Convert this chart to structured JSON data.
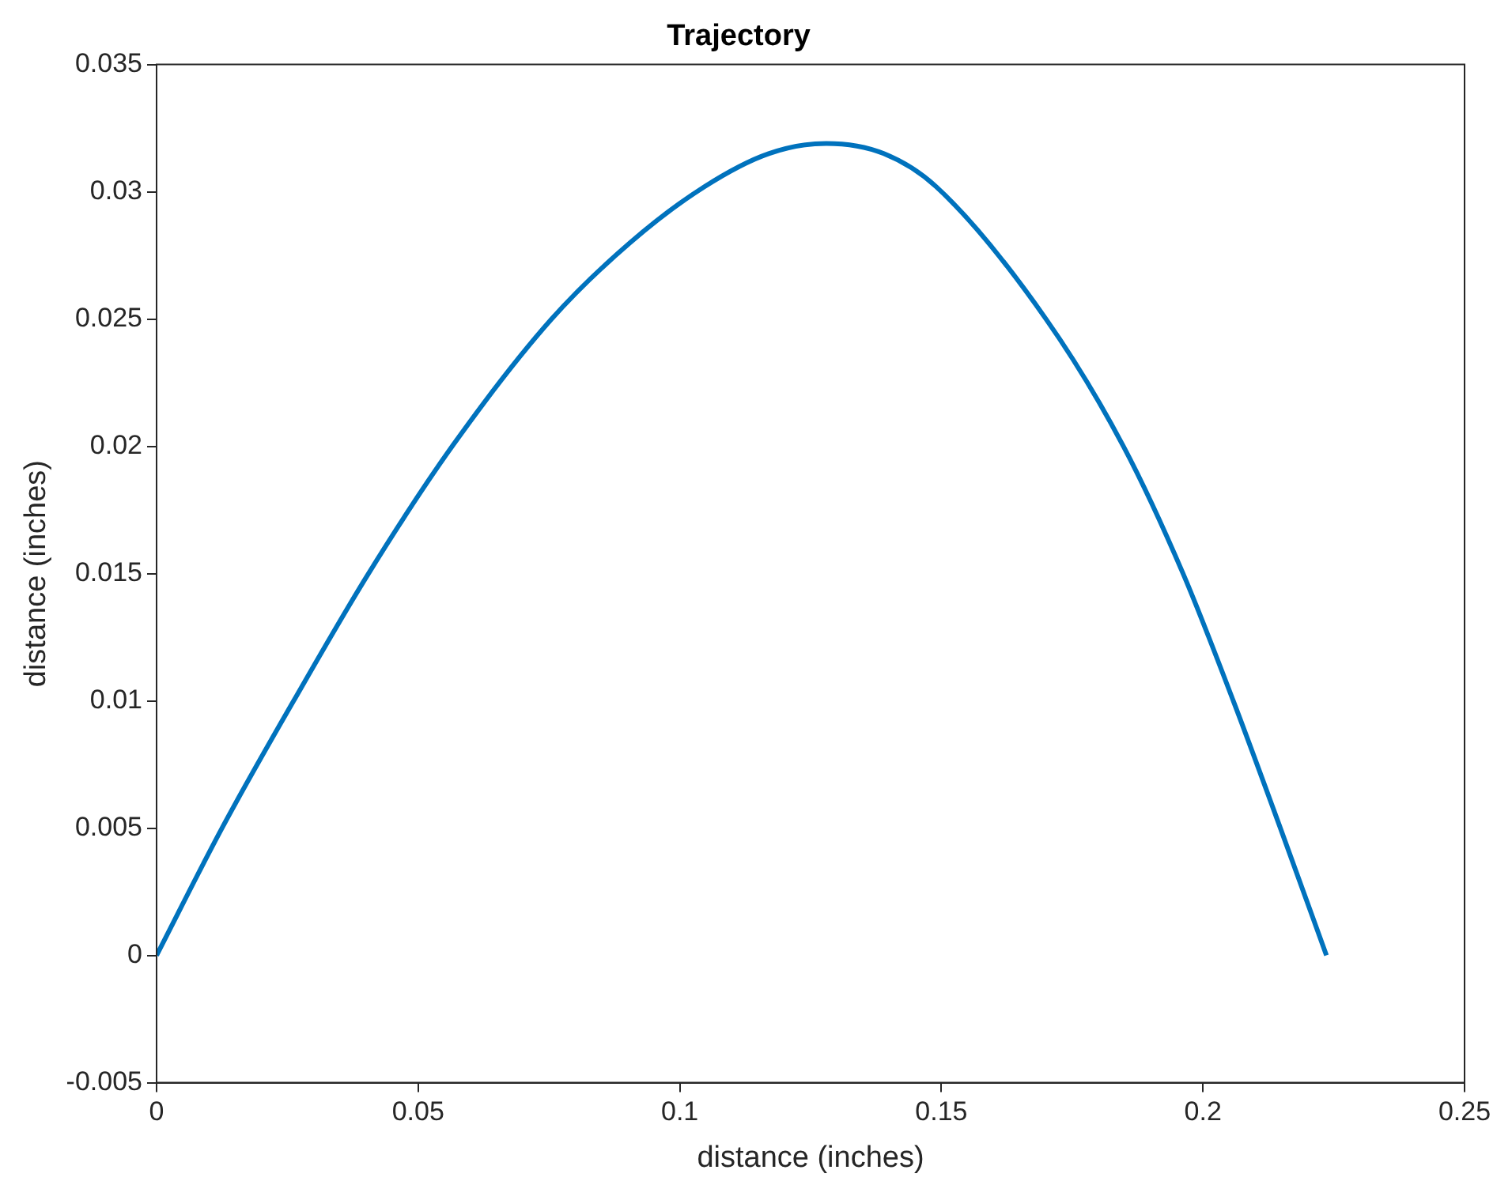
{
  "chart_data": {
    "type": "line",
    "title": "Trajectory",
    "xlabel": "distance (inches)",
    "ylabel": "distance (inches)",
    "series": [
      {
        "color": "#0072bd",
        "x": [
          0,
          0.0125,
          0.0262,
          0.0405,
          0.0565,
          0.0755,
          0.0905,
          0.1047,
          0.117,
          0.128,
          0.139,
          0.149,
          0.17,
          0.1848,
          0.1962,
          0.2058,
          0.2148,
          0.2236
        ],
        "values": [
          0,
          0.005,
          0.01,
          0.015,
          0.02,
          0.025,
          0.028,
          0.0302,
          0.0315,
          0.0319,
          0.0315,
          0.0302,
          0.025,
          0.02,
          0.015,
          0.01,
          0.005,
          0
        ]
      }
    ],
    "xlim": [
      0,
      0.25
    ],
    "xticks": [
      0,
      0.05,
      0.1,
      0.15,
      0.2,
      0.25
    ],
    "ylim": [
      -0.005,
      0.035
    ],
    "yticks": [
      -0.005,
      0,
      0.005,
      0.01,
      0.015,
      0.02,
      0.025,
      0.03,
      0.035
    ],
    "grid": false,
    "legend": false,
    "marker": "none",
    "line_style": "solid"
  }
}
